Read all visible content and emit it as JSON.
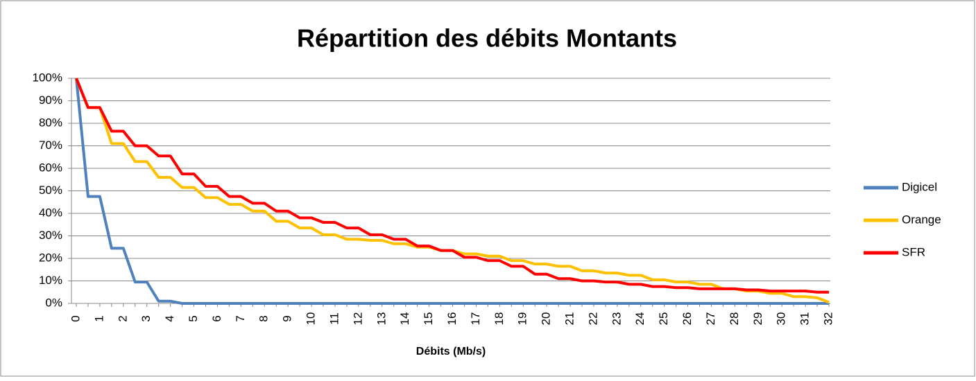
{
  "chart_data": {
    "type": "line",
    "title": "Répartition des débits Montants",
    "x_label": "Débits (Mb/s)",
    "categories": [
      "0",
      null,
      "1",
      null,
      "2",
      null,
      "3",
      null,
      "4",
      null,
      "5",
      null,
      "6",
      null,
      "7",
      null,
      "8",
      null,
      "9",
      null,
      "10",
      null,
      "11",
      null,
      "12",
      null,
      "13",
      null,
      "14",
      null,
      "15",
      null,
      "16",
      null,
      "17",
      null,
      "18",
      null,
      "19",
      null,
      "20",
      null,
      "21",
      null,
      "22",
      null,
      "23",
      null,
      "24",
      null,
      "25",
      null,
      "26",
      null,
      "27",
      null,
      "28",
      null,
      "29",
      null,
      "30",
      null,
      "31",
      null,
      "32"
    ],
    "series": [
      {
        "name": "Digicel",
        "color": "#4f81bd",
        "values": [
          100,
          47.5,
          47.5,
          24.5,
          24.5,
          9.5,
          9.5,
          1,
          1,
          0,
          0,
          0,
          0,
          0,
          0,
          0,
          0,
          0,
          0,
          0,
          0,
          0,
          0,
          0,
          0,
          0,
          0,
          0,
          0,
          0,
          0,
          0,
          0,
          0,
          0,
          0,
          0,
          0,
          0,
          0,
          0,
          0,
          0,
          0,
          0,
          0,
          0,
          0,
          0,
          0,
          0,
          0,
          0,
          0,
          0,
          0,
          0,
          0,
          0,
          0,
          0,
          0,
          0,
          0,
          0
        ]
      },
      {
        "name": "Orange",
        "color": "#ffc000",
        "values": [
          100,
          87,
          87,
          71,
          71,
          63,
          63,
          56,
          56,
          51.5,
          51.5,
          47,
          47,
          44,
          44,
          41,
          41,
          36.5,
          36.5,
          33.5,
          33.5,
          30.5,
          30.5,
          28.5,
          28.5,
          28,
          28,
          26.5,
          26.5,
          25,
          25,
          23.5,
          23.5,
          22,
          22,
          21,
          21,
          19,
          19,
          17.5,
          17.5,
          16.5,
          16.5,
          14.5,
          14.5,
          13.5,
          13.5,
          12.5,
          12.5,
          10.5,
          10.5,
          9.5,
          9.5,
          8.5,
          8.5,
          6.5,
          6.5,
          5.5,
          5.5,
          4.5,
          4.5,
          3,
          3,
          2.5,
          0.5
        ]
      },
      {
        "name": "SFR",
        "color": "#ff0000",
        "values": [
          100,
          87,
          87,
          76.5,
          76.5,
          70,
          70,
          65.5,
          65.5,
          57.5,
          57.5,
          52,
          52,
          47.5,
          47.5,
          44.5,
          44.5,
          41,
          41,
          38,
          38,
          36,
          36,
          33.5,
          33.5,
          30.5,
          30.5,
          28.5,
          28.5,
          25.5,
          25.5,
          23.5,
          23.5,
          20.5,
          20.5,
          19,
          19,
          16.5,
          16.5,
          13,
          13,
          11,
          11,
          10,
          10,
          9.5,
          9.5,
          8.5,
          8.5,
          7.5,
          7.5,
          7,
          7,
          6.5,
          6.5,
          6.5,
          6.5,
          6,
          6,
          5.5,
          5.5,
          5.5,
          5.5,
          5,
          5
        ]
      }
    ],
    "ylim": [
      0,
      100
    ],
    "yticks": [
      {
        "value": 0,
        "label": "0%"
      },
      {
        "value": 10,
        "label": "10%"
      },
      {
        "value": 20,
        "label": "20%"
      },
      {
        "value": 30,
        "label": "30%"
      },
      {
        "value": 40,
        "label": "40%"
      },
      {
        "value": 50,
        "label": "50%"
      },
      {
        "value": 60,
        "label": "60%"
      },
      {
        "value": 70,
        "label": "70%"
      },
      {
        "value": 80,
        "label": "80%"
      },
      {
        "value": 90,
        "label": "90%"
      },
      {
        "value": 100,
        "label": "100%"
      }
    ],
    "grid": true,
    "legend": "right"
  }
}
